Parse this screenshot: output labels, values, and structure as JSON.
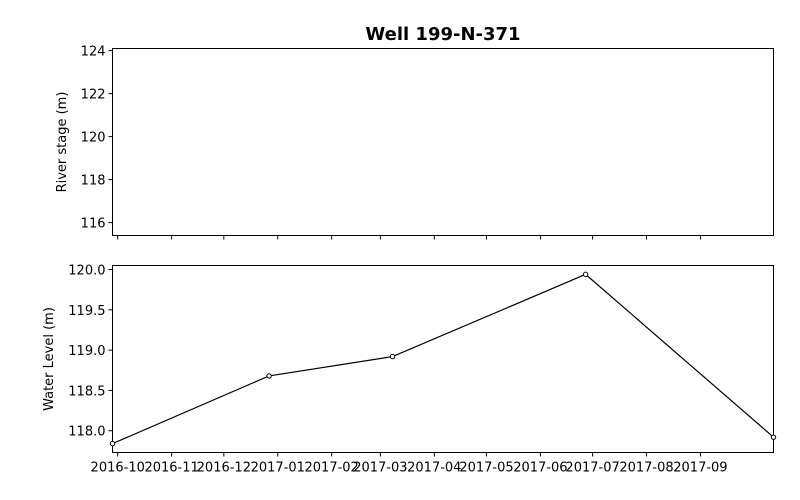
{
  "chart_data": [
    {
      "type": "line",
      "title": "Well 199-N-371",
      "ylabel": "River stage (m)",
      "xlim": [
        "2016-09-28",
        "2017-10-13"
      ],
      "ylim": [
        115.4,
        124.1
      ],
      "yticks": [
        {
          "value": 116,
          "label": "116"
        },
        {
          "value": 118,
          "label": "118"
        },
        {
          "value": 120,
          "label": "120"
        },
        {
          "value": 122,
          "label": "122"
        },
        {
          "value": 124,
          "label": "124"
        }
      ],
      "series": []
    },
    {
      "type": "line",
      "ylabel": "Water Level (m)",
      "xlim": [
        "2016-09-28",
        "2017-10-13"
      ],
      "ylim": [
        117.73,
        120.05
      ],
      "yticks": [
        {
          "value": 118.0,
          "label": "118.0"
        },
        {
          "value": 118.5,
          "label": "118.5"
        },
        {
          "value": 119.0,
          "label": "119.0"
        },
        {
          "value": 119.5,
          "label": "119.5"
        },
        {
          "value": 120.0,
          "label": "120.0"
        }
      ],
      "xticks": [
        {
          "date": "2016-10-01",
          "label": "2016-10"
        },
        {
          "date": "2016-11-01",
          "label": "2016-11"
        },
        {
          "date": "2016-12-01",
          "label": "2016-12"
        },
        {
          "date": "2017-01-01",
          "label": "2017-01"
        },
        {
          "date": "2017-02-01",
          "label": "2017-02"
        },
        {
          "date": "2017-03-01",
          "label": "2017-03"
        },
        {
          "date": "2017-04-01",
          "label": "2017-04"
        },
        {
          "date": "2017-05-01",
          "label": "2017-05"
        },
        {
          "date": "2017-06-01",
          "label": "2017-06"
        },
        {
          "date": "2017-07-01",
          "label": "2017-07"
        },
        {
          "date": "2017-08-01",
          "label": "2017-08"
        },
        {
          "date": "2017-09-01",
          "label": "2017-09"
        }
      ],
      "series": [
        {
          "x": [
            "2016-09-28",
            "2016-12-27",
            "2017-03-08",
            "2017-06-27",
            "2017-10-13"
          ],
          "y": [
            117.84,
            118.68,
            118.92,
            119.94,
            117.92
          ],
          "marker": "circle-open",
          "color": "#000000"
        }
      ]
    }
  ]
}
